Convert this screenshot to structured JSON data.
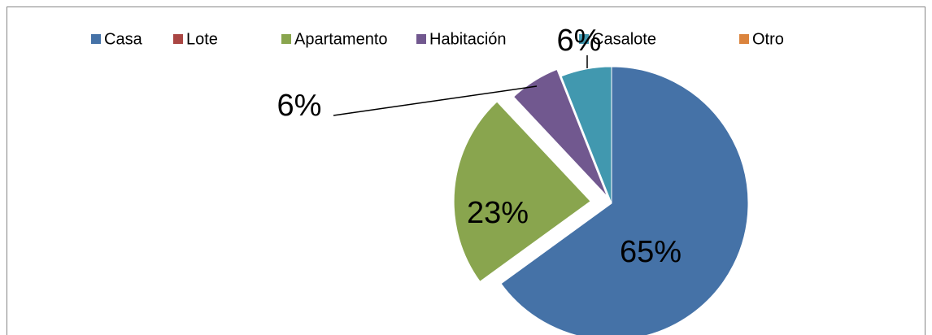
{
  "chart_data": {
    "type": "pie",
    "categories": [
      "Casa",
      "Lote",
      "Apartamento",
      "Habitación",
      "Casalote",
      "Otro"
    ],
    "values": [
      65,
      0,
      23,
      6,
      6,
      0
    ],
    "value_labels": [
      "65%",
      null,
      "23%",
      "6%",
      "6%",
      null
    ],
    "colors": [
      "#4572a7",
      "#aa4643",
      "#89a54e",
      "#71588f",
      "#4198af",
      "#db843d"
    ],
    "legend": "top"
  }
}
